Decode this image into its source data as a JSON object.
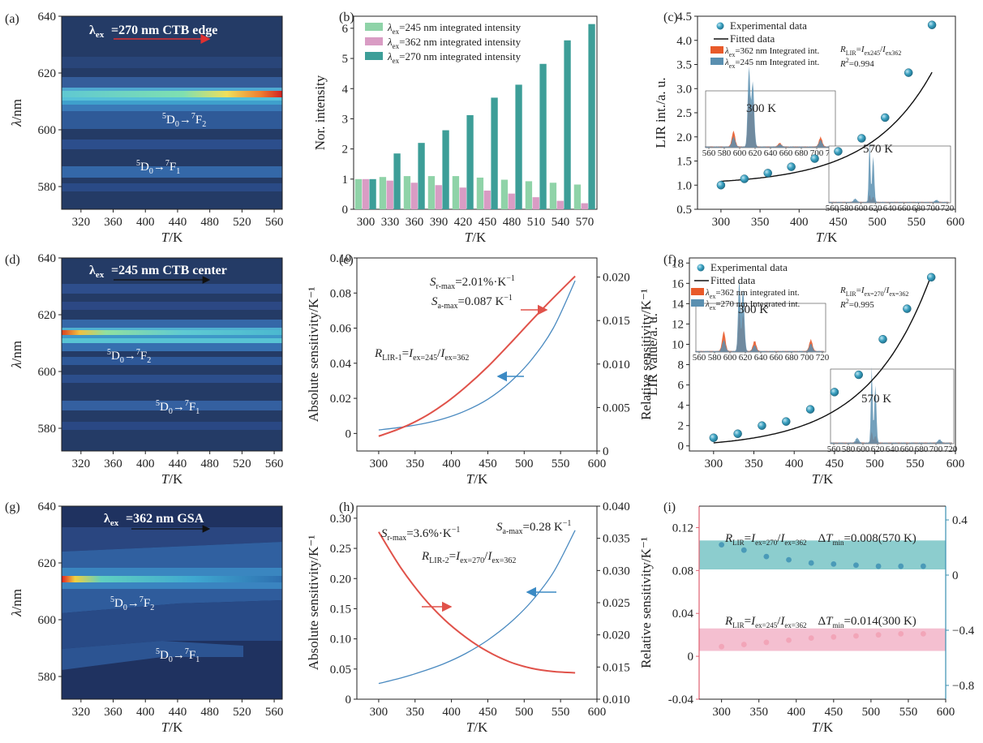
{
  "figure": {
    "panels": {
      "a": {
        "label": "(a)",
        "ex_label": "=270 nm CTB edge",
        "trans1": "→",
        "trans2": "→"
      },
      "b": {
        "label": "(b)"
      },
      "c": {
        "label": "(c)",
        "temp_low": "300 K",
        "temp_high": "570 K",
        "r2": "=0.994"
      },
      "d": {
        "label": "(d)",
        "ex_label": "=245 nm CTB center"
      },
      "e": {
        "label": "(e)",
        "sr": "=2.01%·K",
        "sa": "=0.087 K"
      },
      "f": {
        "label": "(f)",
        "temp_low": "300 K",
        "temp_high": "570 K",
        "r2": "=0.995"
      },
      "g": {
        "label": "(g)",
        "ex_label": "=362 nm GSA"
      },
      "h": {
        "label": "(h)",
        "sr": "=3.6%·K",
        "sa": "=0.28 K"
      },
      "i": {
        "label": "(i)",
        "dt1": "=0.008(570 K)",
        "dt2": "=0.014(300 K)"
      }
    },
    "common": {
      "xlabel_T": "T/K",
      "ylabel_lambda": "λ/nm"
    }
  },
  "chart_data": [
    {
      "id": "a",
      "type": "heatmap",
      "title": "λex=270 nm CTB edge",
      "xlabel": "T/K",
      "ylabel": "λ/nm",
      "xticks": [
        320,
        360,
        400,
        440,
        480,
        520,
        560
      ],
      "yticks": [
        580,
        600,
        620,
        640
      ],
      "xlim": [
        296,
        570
      ],
      "ylim": [
        572,
        640
      ],
      "annotations": [
        "5D0→7F2",
        "5D0→7F1"
      ],
      "bands": [
        {
          "lambda": 614,
          "intensity": [
            0.55,
            0.6,
            0.65,
            0.72,
            0.8,
            0.9,
            1.0
          ]
        },
        {
          "lambda": 611,
          "intensity": [
            0.35,
            0.38,
            0.4,
            0.42,
            0.45,
            0.5,
            0.55
          ]
        },
        {
          "lambda": 592,
          "intensity": [
            0.25,
            0.25,
            0.25,
            0.25,
            0.25,
            0.25,
            0.25
          ]
        }
      ]
    },
    {
      "id": "b",
      "type": "bar",
      "xlabel": "T/K",
      "ylabel": "Nor. intensity",
      "categories": [
        "300",
        "330",
        "360",
        "390",
        "420",
        "450",
        "480",
        "510",
        "540",
        "570"
      ],
      "ylim": [
        0,
        6.4
      ],
      "yticks": [
        0,
        1,
        2,
        3,
        4,
        5,
        6
      ],
      "series": [
        {
          "name": "λex=245 nm integrated intensity",
          "color": "#8fd3a8",
          "values": [
            1.0,
            1.07,
            1.1,
            1.1,
            1.1,
            1.05,
            0.98,
            0.93,
            0.88,
            0.82
          ]
        },
        {
          "name": "λex=362 nm integrated intensity",
          "color": "#d99cc4",
          "values": [
            1.0,
            0.95,
            0.88,
            0.8,
            0.72,
            0.62,
            0.52,
            0.4,
            0.28,
            0.2
          ]
        },
        {
          "name": "λex=270 nm integrated intensity",
          "color": "#3d9e98",
          "values": [
            1.0,
            1.85,
            2.2,
            2.62,
            3.12,
            3.7,
            4.13,
            4.82,
            5.6,
            6.14
          ]
        }
      ]
    },
    {
      "id": "c",
      "type": "scatter",
      "xlabel": "T/K",
      "ylabel": "LIR int./a. u.",
      "xlim": [
        270,
        600
      ],
      "ylim": [
        0.5,
        4.5
      ],
      "xticks": [
        300,
        350,
        400,
        450,
        500,
        550,
        600
      ],
      "yticks": [
        0.5,
        1.0,
        1.5,
        2.0,
        2.5,
        3.0,
        3.5,
        4.0,
        4.5
      ],
      "series": [
        {
          "name": "Experimental data",
          "x": [
            300,
            330,
            360,
            390,
            420,
            450,
            480,
            510,
            540,
            570
          ],
          "y": [
            1.0,
            1.13,
            1.25,
            1.38,
            1.55,
            1.7,
            1.97,
            2.4,
            3.33,
            4.32
          ]
        },
        {
          "name": "Fitted data",
          "x": [
            300,
            330,
            360,
            390,
            420,
            450,
            480,
            510,
            540,
            570
          ],
          "y": [
            1.08,
            1.13,
            1.22,
            1.35,
            1.53,
            1.78,
            2.15,
            2.68,
            3.4,
            4.32
          ]
        }
      ],
      "legend": [
        "Experimental data",
        "Fitted data",
        "λex=362 nm Integrated int.",
        "λex=245 nm Integrated int."
      ],
      "formula": "RLIR=Iex245/Iex362",
      "r2": "R²=0.994",
      "insets": [
        {
          "label": "300 K",
          "xticks": [
            560,
            580,
            600,
            620,
            640,
            660,
            680,
            700,
            720
          ]
        },
        {
          "label": "570 K",
          "xticks": [
            560,
            580,
            600,
            620,
            640,
            660,
            680,
            700,
            720
          ]
        }
      ]
    },
    {
      "id": "d",
      "type": "heatmap",
      "title": "λex=245 nm CTB center",
      "xlabel": "T/K",
      "ylabel": "λ/nm",
      "xticks": [
        320,
        360,
        400,
        440,
        480,
        520,
        560
      ],
      "yticks": [
        580,
        600,
        620,
        640
      ],
      "xlim": [
        296,
        570
      ],
      "ylim": [
        572,
        640
      ],
      "annotations": [
        "5D0→7F2",
        "5D0→7F1"
      ]
    },
    {
      "id": "e",
      "type": "line",
      "xlabel": "T/K",
      "ylabel": "Absolute sensitivity/K⁻¹",
      "ylabel_right": "Relative sensitivity/K⁻¹",
      "xlim": [
        270,
        600
      ],
      "ylim": [
        -0.01,
        0.1
      ],
      "ylim_right": [
        0,
        0.0222
      ],
      "xticks": [
        300,
        350,
        400,
        450,
        500,
        550,
        600
      ],
      "yticks": [
        0,
        0.02,
        0.04,
        0.06,
        0.08,
        0.1
      ],
      "yticks_right": [
        0,
        0.005,
        0.01,
        0.015,
        0.02
      ],
      "series": [
        {
          "name": "Sa",
          "axis": "left",
          "color": "#4a8ac0",
          "x": [
            300,
            330,
            360,
            390,
            420,
            450,
            480,
            510,
            540,
            570
          ],
          "y": [
            0.002,
            0.0035,
            0.0055,
            0.0085,
            0.013,
            0.0195,
            0.029,
            0.042,
            0.06,
            0.087
          ]
        },
        {
          "name": "Sr",
          "axis": "right",
          "color": "#e0524a",
          "x": [
            300,
            330,
            360,
            390,
            420,
            450,
            480,
            510,
            540,
            570
          ],
          "y": [
            0.0017,
            0.0026,
            0.0038,
            0.0054,
            0.0074,
            0.0097,
            0.0123,
            0.015,
            0.0176,
            0.0201
          ]
        }
      ],
      "annotations": [
        "Sr-max=2.01%·K⁻¹",
        "Sa-max=0.087 K⁻¹",
        "RLIR-1=Iex=245/Iex=362"
      ]
    },
    {
      "id": "f",
      "type": "scatter",
      "xlabel": "T/K",
      "ylabel": "LIR value/a. u.",
      "xlim": [
        270,
        600
      ],
      "ylim": [
        -0.5,
        18.5
      ],
      "xticks": [
        300,
        350,
        400,
        450,
        500,
        550,
        600
      ],
      "yticks": [
        0,
        2,
        4,
        6,
        8,
        10,
        12,
        14,
        16,
        18
      ],
      "series": [
        {
          "name": "Experimental data",
          "x": [
            300,
            330,
            360,
            390,
            420,
            450,
            480,
            510,
            540,
            570
          ],
          "y": [
            0.8,
            1.2,
            2.0,
            2.4,
            3.6,
            5.3,
            7.0,
            10.5,
            13.5,
            16.6
          ]
        },
        {
          "name": "Fitted data",
          "x": [
            300,
            330,
            360,
            390,
            420,
            450,
            480,
            510,
            540,
            570
          ],
          "y": [
            0.4,
            0.9,
            1.5,
            2.3,
            3.4,
            4.8,
            6.7,
            9.1,
            12.4,
            16.6
          ]
        }
      ],
      "legend": [
        "Experimental data",
        "Fitted data",
        "λex=362 nm integrated int.",
        "λex=270 nm Integrated int."
      ],
      "formula": "RLIR=Iex=270/Iex=362",
      "r2": "R²=0.995",
      "insets": [
        {
          "label": "300 K",
          "xticks": [
            560,
            580,
            600,
            620,
            640,
            660,
            680,
            700,
            720
          ]
        },
        {
          "label": "570 K",
          "xticks": [
            560,
            580,
            600,
            620,
            640,
            660,
            680,
            700,
            720
          ]
        }
      ]
    },
    {
      "id": "g",
      "type": "heatmap",
      "title": "λex=362 nm GSA",
      "xlabel": "T/K",
      "ylabel": "λ/nm",
      "xticks": [
        320,
        360,
        400,
        440,
        480,
        520,
        560
      ],
      "yticks": [
        580,
        600,
        620,
        640
      ],
      "xlim": [
        296,
        570
      ],
      "ylim": [
        572,
        640
      ],
      "annotations": [
        "5D0→7F2",
        "5D0→7F1"
      ]
    },
    {
      "id": "h",
      "type": "line",
      "xlabel": "T/K",
      "ylabel": "Absolute sensitivity/K⁻¹",
      "ylabel_right": "Relative sensitivity/K⁻¹",
      "xlim": [
        270,
        600
      ],
      "ylim": [
        0,
        0.32
      ],
      "ylim_right": [
        0.01,
        0.04
      ],
      "xticks": [
        300,
        350,
        400,
        450,
        500,
        550,
        600
      ],
      "yticks": [
        0,
        0.05,
        0.1,
        0.15,
        0.2,
        0.25,
        0.3
      ],
      "yticks_right": [
        0.01,
        0.015,
        0.02,
        0.025,
        0.03,
        0.035,
        0.04
      ],
      "series": [
        {
          "name": "Sa",
          "axis": "left",
          "color": "#4a8ac0",
          "x": [
            300,
            330,
            360,
            390,
            420,
            450,
            480,
            510,
            540,
            570
          ],
          "y": [
            0.026,
            0.035,
            0.046,
            0.059,
            0.076,
            0.098,
            0.126,
            0.162,
            0.21,
            0.28
          ]
        },
        {
          "name": "Sr",
          "axis": "right",
          "color": "#e0524a",
          "x": [
            300,
            330,
            360,
            390,
            420,
            450,
            480,
            510,
            540,
            570
          ],
          "y": [
            0.036,
            0.0305,
            0.026,
            0.0224,
            0.0196,
            0.0174,
            0.0158,
            0.0148,
            0.0143,
            0.0141
          ]
        }
      ],
      "annotations": [
        "Sr-max=3.6%·K⁻¹",
        "Sa-max=0.28 K⁻¹",
        "RLIR-2=Iex=270/Iex=362"
      ]
    },
    {
      "id": "i",
      "type": "scatter",
      "xlabel": "T/K",
      "xlim": [
        270,
        600
      ],
      "ylim": [
        -0.04,
        0.14
      ],
      "ylim_right": [
        -0.9,
        0.5
      ],
      "xticks": [
        300,
        350,
        400,
        450,
        500,
        550,
        600
      ],
      "yticks": [
        -0.04,
        0,
        0.04,
        0.08,
        0.12
      ],
      "yticks_right": [
        -0.8,
        -0.4,
        0,
        0.4
      ],
      "bands": [
        {
          "axis": "left",
          "color": "#66bcbd",
          "ymin": 0.081,
          "ymax": 0.108
        },
        {
          "axis": "left",
          "color": "#f0aac0",
          "ymin": 0.005,
          "ymax": 0.026
        }
      ],
      "series": [
        {
          "name": "RLIR=Iex=270/Iex=362",
          "axis": "left",
          "color": "#4a9ab8",
          "x": [
            300,
            330,
            360,
            390,
            420,
            450,
            480,
            510,
            540,
            570
          ],
          "y": [
            0.104,
            0.099,
            0.093,
            0.09,
            0.087,
            0.086,
            0.085,
            0.084,
            0.084,
            0.084
          ]
        },
        {
          "name": "RLIR=Iex=245/Iex=362",
          "axis": "left",
          "color": "#f2a5b8",
          "x": [
            300,
            330,
            360,
            390,
            420,
            450,
            480,
            510,
            540,
            570
          ],
          "y": [
            0.009,
            0.011,
            0.013,
            0.015,
            0.017,
            0.018,
            0.019,
            0.02,
            0.021,
            0.021
          ]
        }
      ],
      "annotations": [
        "RLIR=Iex=270/Iex=362  ΔTmin=0.008(570 K)",
        "RLIR=Iex=245/Iex=362  ΔTmin=0.014(300 K)"
      ]
    }
  ]
}
